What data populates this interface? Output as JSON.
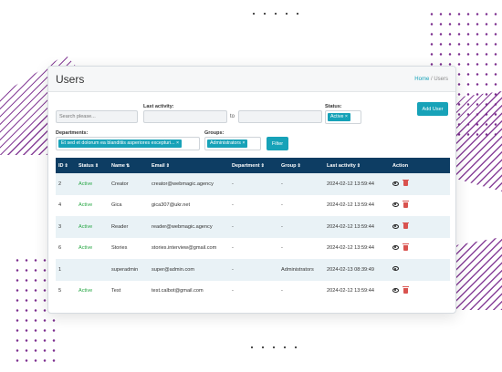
{
  "header": {
    "title": "Users",
    "breadcrumb_home": "Home",
    "breadcrumb_sep": "/",
    "breadcrumb_current": "Users"
  },
  "filters": {
    "search_placeholder": "Search please...",
    "last_activity_label": "Last activity:",
    "to_label": "to",
    "status_label": "Status:",
    "status_tag": "Active ×",
    "departments_label": "Departments:",
    "departments_tag": "Et sed et dolorum ea blanditiis asperiores excepturi... ×",
    "groups_label": "Groups:",
    "groups_tag": "Administrators ×",
    "filter_button": "Filter",
    "add_user_button": "Add User"
  },
  "table": {
    "columns": [
      "ID",
      "Status",
      "Name",
      "Email",
      "Department",
      "Group",
      "Last activity",
      "Action"
    ],
    "sort_glyphs": [
      "⇕",
      "⇕",
      "⇅",
      "⇕",
      "⇕",
      "⇕",
      "⇕",
      ""
    ],
    "rows": [
      {
        "id": "2",
        "status": "Active",
        "name": "Creator",
        "email": "creator@webmagic.agency",
        "department": "-",
        "group": "-",
        "last_activity": "2024-02-12 13:59:44",
        "delete": true
      },
      {
        "id": "4",
        "status": "Active",
        "name": "Gica",
        "email": "gica307@ukr.net",
        "department": "-",
        "group": "-",
        "last_activity": "2024-02-12 13:59:44",
        "delete": true
      },
      {
        "id": "3",
        "status": "Active",
        "name": "Reader",
        "email": "reader@webmagic.agency",
        "department": "-",
        "group": "-",
        "last_activity": "2024-02-12 13:59:44",
        "delete": true
      },
      {
        "id": "6",
        "status": "Active",
        "name": "Stories",
        "email": "stories.interview@gmail.com",
        "department": "-",
        "group": "-",
        "last_activity": "2024-02-12 13:59:44",
        "delete": true
      },
      {
        "id": "1",
        "status": "",
        "name": "superadmin",
        "email": "super@admin.com",
        "department": "-",
        "group": "Administrators",
        "last_activity": "2024-02-13 08:39:49",
        "delete": false
      },
      {
        "id": "5",
        "status": "Active",
        "name": "Test",
        "email": "test.calbot@gmail.com",
        "department": "-",
        "group": "-",
        "last_activity": "2024-02-12 13:59:44",
        "delete": true
      }
    ]
  },
  "icons": {
    "view": "eye-icon",
    "delete": "trash-icon"
  },
  "colors": {
    "accent": "#17a2b8",
    "header_bg": "#0d3d63",
    "active": "#28a745",
    "danger": "#d9534f",
    "decor": "#7b2d8e"
  }
}
